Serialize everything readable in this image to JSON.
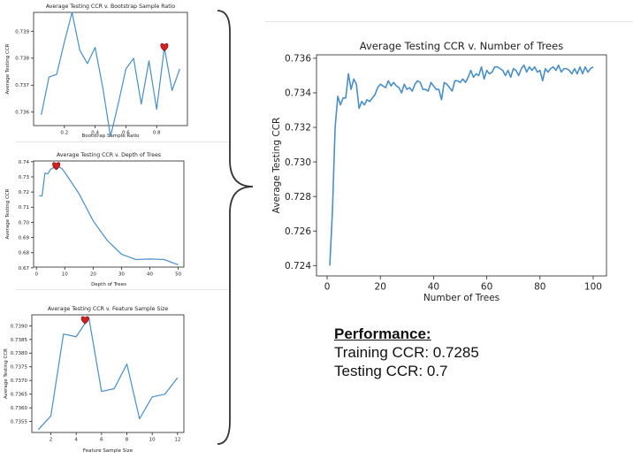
{
  "performance": {
    "heading": "Performance:",
    "training": "Training CCR: 0.7285",
    "testing": "Testing CCR: 0.7"
  },
  "chart_data": [
    {
      "type": "line",
      "title": "Average Testing CCR v. Bootstrap Sample Ratio",
      "xlabel": "Bootstrap Sample Ratio",
      "ylabel": "Average Testing CCR",
      "xlim": [
        0.0,
        1.0
      ],
      "ylim": [
        0.7355,
        0.7397
      ],
      "xticks": [
        0.2,
        0.4,
        0.6,
        0.8
      ],
      "yticks": [
        0.736,
        0.737,
        0.738,
        0.739
      ],
      "x": [
        0.05,
        0.1,
        0.15,
        0.2,
        0.25,
        0.3,
        0.35,
        0.4,
        0.45,
        0.5,
        0.55,
        0.6,
        0.65,
        0.7,
        0.75,
        0.8,
        0.85,
        0.9,
        0.95
      ],
      "y": [
        0.7359,
        0.7373,
        0.7374,
        0.7386,
        0.7397,
        0.7383,
        0.7378,
        0.7384,
        0.7369,
        0.7351,
        0.7363,
        0.7376,
        0.738,
        0.7363,
        0.7379,
        0.7361,
        0.7384,
        0.7368,
        0.7376
      ],
      "highlight": {
        "x": 0.85,
        "y": 0.7384,
        "marker": "heart",
        "color": "#d42020"
      }
    },
    {
      "type": "line",
      "title": "Average Testing CCR v. Depth of Trees",
      "xlabel": "Depth of Trees",
      "ylabel": "Average Testing CCR",
      "xlim": [
        -1,
        52
      ],
      "ylim": [
        0.6705,
        0.7405
      ],
      "xticks": [
        0,
        10,
        20,
        30,
        40,
        50
      ],
      "yticks": [
        0.67,
        0.68,
        0.69,
        0.7,
        0.71,
        0.72,
        0.73,
        0.74
      ],
      "x": [
        1,
        2,
        3,
        4,
        5,
        6,
        7,
        8,
        9,
        10,
        15,
        20,
        25,
        30,
        35,
        40,
        45,
        50
      ],
      "y": [
        0.7175,
        0.7175,
        0.7325,
        0.732,
        0.735,
        0.736,
        0.737,
        0.7365,
        0.7355,
        0.733,
        0.719,
        0.701,
        0.688,
        0.679,
        0.6755,
        0.6758,
        0.6755,
        0.672
      ],
      "highlight": {
        "x": 7,
        "y": 0.737,
        "marker": "heart",
        "color": "#d42020"
      }
    },
    {
      "type": "line",
      "title": "Average Testing CCR v. Feature Sample Size",
      "xlabel": "Feature Sample Size",
      "ylabel": "Average Testing CCR",
      "xlim": [
        0.5,
        12.5
      ],
      "ylim": [
        0.7351,
        0.7394
      ],
      "xticks": [
        2,
        4,
        6,
        8,
        10,
        12
      ],
      "yticks": [
        0.7355,
        0.736,
        0.7365,
        0.737,
        0.7375,
        0.738,
        0.7385,
        0.739
      ],
      "x": [
        1,
        2,
        3,
        4,
        5,
        6,
        7,
        8,
        9,
        10,
        11,
        12
      ],
      "y": [
        0.7352,
        0.7357,
        0.7387,
        0.7386,
        0.7393,
        0.7366,
        0.7367,
        0.7376,
        0.7356,
        0.7364,
        0.7365,
        0.7371
      ],
      "highlight": {
        "x": 4.7,
        "y": 0.7392,
        "marker": "heart",
        "color": "#d42020"
      }
    },
    {
      "type": "line",
      "title": "Average Testing CCR v. Number of Trees",
      "xlabel": "Number of Trees",
      "ylabel": "Average Testing CCR",
      "xlim": [
        -4,
        105
      ],
      "ylim": [
        0.7234,
        0.7362
      ],
      "xticks": [
        0,
        20,
        40,
        60,
        80,
        100
      ],
      "yticks": [
        0.724,
        0.726,
        0.728,
        0.73,
        0.732,
        0.734,
        0.736
      ],
      "x": [
        1,
        2,
        3,
        4,
        5,
        6,
        7,
        8,
        9,
        10,
        11,
        12,
        13,
        14,
        15,
        16,
        17,
        18,
        19,
        20,
        21,
        22,
        23,
        24,
        25,
        26,
        27,
        28,
        29,
        30,
        31,
        32,
        33,
        34,
        35,
        36,
        37,
        38,
        39,
        40,
        41,
        42,
        43,
        44,
        45,
        46,
        47,
        48,
        49,
        50,
        51,
        52,
        53,
        54,
        55,
        56,
        57,
        58,
        59,
        60,
        61,
        62,
        63,
        64,
        65,
        66,
        67,
        68,
        69,
        70,
        71,
        72,
        73,
        74,
        75,
        76,
        77,
        78,
        79,
        80,
        81,
        82,
        83,
        84,
        85,
        86,
        87,
        88,
        89,
        90,
        91,
        92,
        93,
        94,
        95,
        96,
        97,
        98,
        99,
        100
      ],
      "y": [
        0.724,
        0.7272,
        0.732,
        0.7338,
        0.7333,
        0.7337,
        0.7337,
        0.7351,
        0.7342,
        0.7348,
        0.7345,
        0.7331,
        0.7335,
        0.7333,
        0.7336,
        0.7335,
        0.7337,
        0.7339,
        0.7343,
        0.7345,
        0.7344,
        0.7343,
        0.7347,
        0.7344,
        0.7346,
        0.7344,
        0.7343,
        0.734,
        0.7345,
        0.7342,
        0.7343,
        0.7341,
        0.7345,
        0.7347,
        0.7346,
        0.7342,
        0.7342,
        0.7341,
        0.7346,
        0.7344,
        0.7342,
        0.7342,
        0.7336,
        0.7346,
        0.7345,
        0.7343,
        0.7341,
        0.7347,
        0.7347,
        0.7346,
        0.7348,
        0.7346,
        0.7349,
        0.7353,
        0.7349,
        0.7351,
        0.735,
        0.7355,
        0.7348,
        0.7353,
        0.7351,
        0.7352,
        0.7355,
        0.7355,
        0.7354,
        0.7353,
        0.735,
        0.7353,
        0.7349,
        0.7354,
        0.7353,
        0.735,
        0.7354,
        0.7356,
        0.7352,
        0.7355,
        0.7353,
        0.7355,
        0.7352,
        0.7353,
        0.7347,
        0.7354,
        0.7352,
        0.7354,
        0.7355,
        0.7353,
        0.7356,
        0.7352,
        0.7354,
        0.7354,
        0.7353,
        0.7351,
        0.7354,
        0.7351,
        0.7355,
        0.7351,
        0.7355,
        0.7352,
        0.7354,
        0.7355
      ]
    }
  ]
}
